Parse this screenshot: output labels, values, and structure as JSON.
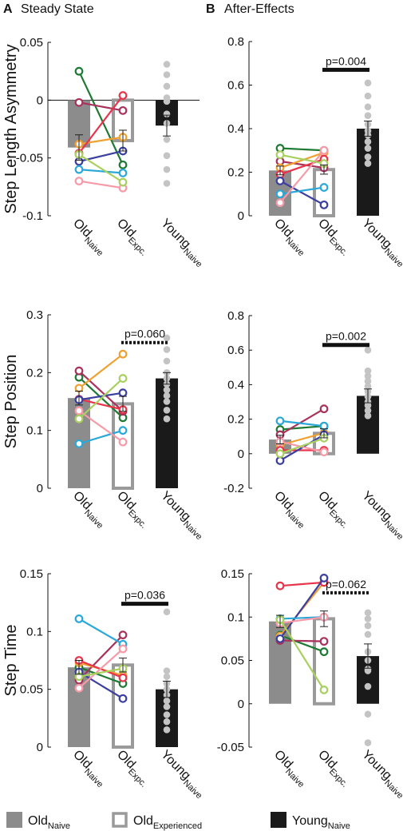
{
  "panel_labels": [
    {
      "letter": "A",
      "title": "Steady State"
    },
    {
      "letter": "B",
      "title": "After-Effects"
    }
  ],
  "groups": [
    {
      "base": "Old",
      "sub": "Naive"
    },
    {
      "base": "Old",
      "sub": "Expc."
    },
    {
      "base": "Young",
      "sub": "Naive"
    }
  ],
  "legend": [
    {
      "base": "Old",
      "sub": "Naive",
      "style": "filled-gray"
    },
    {
      "base": "Old",
      "sub": "Experienced",
      "style": "open-gray"
    },
    {
      "base": "Young",
      "sub": "Naive",
      "style": "filled-black"
    }
  ],
  "colors": {
    "old_naive_bar": "#8c8c8c",
    "old_expc_bar_edge": "#9a9a9a",
    "young_naive_bar": "#1a1a1a",
    "young_dots": "#c4c4c4",
    "subjects": [
      "#1e7a33",
      "#a8325c",
      "#f0a030",
      "#e8344a",
      "#3b3fa0",
      "#2ba8d8",
      "#f79aa8",
      "#a8d060"
    ]
  },
  "chart_data": [
    {
      "type": "bar",
      "panel": "A",
      "ylabel": "Step Length Asymmetry",
      "ylim": [
        -0.1,
        0.05
      ],
      "yticks": [
        -0.1,
        -0.05,
        0,
        0.05
      ],
      "ytick_labels": [
        "-0.1",
        "-0.05",
        "0",
        "0.05"
      ],
      "zero_line": true,
      "bars": [
        {
          "mean": -0.041,
          "se": 0.011
        },
        {
          "mean": -0.035,
          "se": 0.009
        },
        {
          "mean": -0.022,
          "se": 0.009
        }
      ],
      "paired": {
        "naive": [
          0.025,
          -0.002,
          -0.038,
          -0.046,
          -0.053,
          -0.06,
          -0.07,
          -0.047
        ],
        "expc": [
          -0.056,
          -0.009,
          -0.032,
          0.004,
          -0.044,
          -0.063,
          -0.076,
          -0.071
        ]
      },
      "young": [
        0.031,
        0.022,
        0.012,
        0.002,
        -0.001,
        -0.012,
        -0.02,
        -0.034,
        -0.048,
        -0.06,
        -0.072
      ],
      "sig": null
    },
    {
      "type": "bar",
      "panel": "B",
      "ylabel": "",
      "ylim": [
        0,
        0.8
      ],
      "yticks": [
        0,
        0.2,
        0.4,
        0.6,
        0.8
      ],
      "ytick_labels": [
        "0",
        "0.2",
        "0.4",
        "0.6",
        "0.8"
      ],
      "zero_line": false,
      "bars": [
        {
          "mean": 0.208,
          "se": 0.02
        },
        {
          "mean": 0.212,
          "se": 0.021
        },
        {
          "mean": 0.4,
          "se": 0.035
        }
      ],
      "paired": {
        "naive": [
          0.31,
          0.25,
          0.22,
          0.19,
          0.16,
          0.1,
          0.06,
          0.28
        ],
        "expc": [
          0.3,
          0.22,
          0.29,
          0.26,
          0.05,
          0.13,
          0.3,
          0.24
        ]
      },
      "young": [
        0.61,
        0.55,
        0.5,
        0.46,
        0.42,
        0.39,
        0.37,
        0.34,
        0.31,
        0.27,
        0.24
      ],
      "sig": {
        "text": "p=0.004",
        "style": "solid",
        "from": 1,
        "to": 2,
        "y": 0.67
      }
    },
    {
      "type": "bar",
      "panel": "A",
      "ylabel": "Step Position",
      "ylim": [
        0,
        0.3
      ],
      "yticks": [
        0,
        0.1,
        0.2,
        0.3
      ],
      "ytick_labels": [
        "0",
        "0.1",
        "0.2",
        "0.3"
      ],
      "zero_line": false,
      "bars": [
        {
          "mean": 0.156,
          "se": 0.012
        },
        {
          "mean": 0.146,
          "se": 0.013
        },
        {
          "mean": 0.19,
          "se": 0.01
        }
      ],
      "paired": {
        "naive": [
          0.192,
          0.203,
          0.173,
          0.154,
          0.153,
          0.077,
          0.134,
          0.12
        ],
        "expc": [
          0.122,
          0.133,
          0.232,
          0.136,
          0.165,
          0.1,
          0.08,
          0.19
        ]
      },
      "young": [
        0.26,
        0.24,
        0.22,
        0.2,
        0.19,
        0.18,
        0.17,
        0.16,
        0.15,
        0.135,
        0.12
      ],
      "sig": {
        "text": "p=0.060",
        "style": "dashed",
        "from": 1,
        "to": 2,
        "y": 0.252
      }
    },
    {
      "type": "bar",
      "panel": "B",
      "ylabel": "",
      "ylim": [
        -0.2,
        0.8
      ],
      "yticks": [
        -0.2,
        0,
        0.2,
        0.4,
        0.6,
        0.8
      ],
      "ytick_labels": [
        "-0.2",
        "0",
        "0.2",
        "0.4",
        "0.6",
        "0.8"
      ],
      "zero_line": false,
      "bars": [
        {
          "mean": 0.082,
          "se": 0.025
        },
        {
          "mean": 0.118,
          "se": 0.026
        },
        {
          "mean": 0.335,
          "se": 0.04
        }
      ],
      "paired": {
        "naive": [
          0.14,
          0.11,
          0.05,
          0.02,
          -0.04,
          0.19,
          0.07,
          0.0
        ],
        "expc": [
          0.16,
          0.26,
          0.12,
          0.02,
          0.11,
          0.16,
          0.01,
          0.09
        ]
      },
      "young": [
        0.6,
        0.48,
        0.45,
        0.42,
        0.39,
        0.36,
        0.33,
        0.3,
        0.28,
        0.25,
        0.22
      ],
      "sig": {
        "text": "p=0.002",
        "style": "solid",
        "from": 1,
        "to": 2,
        "y": 0.63
      }
    },
    {
      "type": "bar",
      "panel": "A",
      "ylabel": "Step Time",
      "ylim": [
        0,
        0.15
      ],
      "yticks": [
        0,
        0.05,
        0.1,
        0.15
      ],
      "ytick_labels": [
        "0",
        "0.05",
        "0.1",
        "0.15"
      ],
      "zero_line": false,
      "bars": [
        {
          "mean": 0.069,
          "se": 0.006
        },
        {
          "mean": 0.071,
          "se": 0.006
        },
        {
          "mean": 0.05,
          "se": 0.007
        }
      ],
      "paired": {
        "naive": [
          0.069,
          0.058,
          0.073,
          0.075,
          0.065,
          0.111,
          0.051,
          0.061
        ],
        "expc": [
          0.055,
          0.097,
          0.062,
          0.06,
          0.042,
          0.089,
          0.085,
          0.068
        ]
      },
      "young": [
        0.117,
        0.066,
        0.061,
        0.055,
        0.05,
        0.045,
        0.04,
        0.035,
        0.028,
        0.022,
        0.015
      ],
      "sig": {
        "text": "p=0.036",
        "style": "solid",
        "from": 1,
        "to": 2,
        "y": 0.124
      }
    },
    {
      "type": "bar",
      "panel": "B",
      "ylabel": "",
      "ylim": [
        -0.05,
        0.15
      ],
      "yticks": [
        -0.05,
        0,
        0.05,
        0.1,
        0.15
      ],
      "ytick_labels": [
        "-0.05",
        "0",
        "0.05",
        "0.1",
        "0.15"
      ],
      "zero_line": false,
      "bars": [
        {
          "mean": 0.095,
          "se": 0.007
        },
        {
          "mean": 0.098,
          "se": 0.009
        },
        {
          "mean": 0.055,
          "se": 0.014
        }
      ],
      "paired": {
        "naive": [
          0.079,
          0.073,
          0.078,
          0.136,
          0.075,
          0.098,
          0.093,
          0.097
        ],
        "expc": [
          0.06,
          0.072,
          0.14,
          0.14,
          0.145,
          0.1,
          0.1,
          0.016
        ]
      },
      "young": [
        0.105,
        0.098,
        0.09,
        0.08,
        0.06,
        0.05,
        0.04,
        0.038,
        0.02,
        -0.012,
        -0.045
      ],
      "sig": {
        "text": "p=0.062",
        "style": "dashed",
        "from": 1,
        "to": 2,
        "y": 0.128
      }
    }
  ]
}
